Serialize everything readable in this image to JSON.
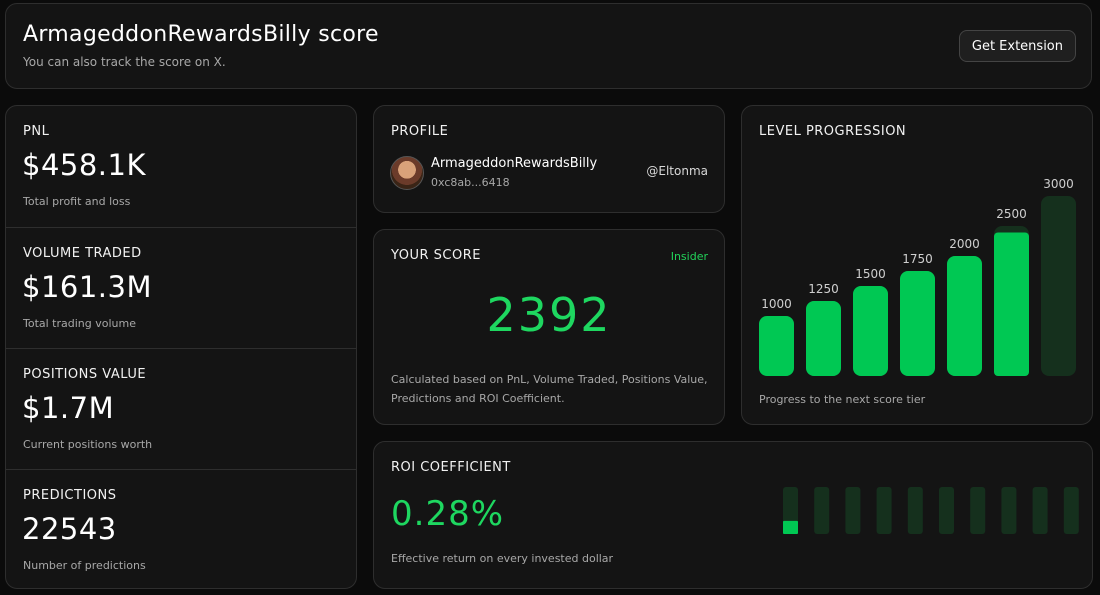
{
  "header": {
    "title": "ArmageddonRewardsBilly score",
    "subtitle": "You can also track the score on X.",
    "button_label": "Get Extension"
  },
  "stats": [
    {
      "label": "PNL",
      "value": "$458.1K",
      "desc": "Total profit and loss"
    },
    {
      "label": "VOLUME TRADED",
      "value": "$161.3M",
      "desc": "Total trading volume"
    },
    {
      "label": "POSITIONS VALUE",
      "value": "$1.7M",
      "desc": "Current positions worth"
    },
    {
      "label": "PREDICTIONS",
      "value": "22543",
      "desc": "Number of predictions"
    }
  ],
  "profile": {
    "label": "PROFILE",
    "name": "ArmageddonRewardsBilly",
    "address": "0xc8ab...6418",
    "handle": "@Eltonma"
  },
  "score": {
    "label": "YOUR SCORE",
    "tier": "Insider",
    "value": "2392",
    "description": "Calculated based on PnL, Volume Traded, Positions Value, Predictions and ROI Coefficient."
  },
  "levels": {
    "label": "LEVEL PROGRESSION",
    "footer": "Progress to the next score tier",
    "current_score": 2392,
    "tiers": [
      {
        "label": "1000",
        "value": 1000
      },
      {
        "label": "1250",
        "value": 1250
      },
      {
        "label": "1500",
        "value": 1500
      },
      {
        "label": "1750",
        "value": 1750
      },
      {
        "label": "2000",
        "value": 2000
      },
      {
        "label": "2500",
        "value": 2500
      },
      {
        "label": "3000",
        "value": 3000
      }
    ]
  },
  "roi": {
    "label": "ROI COEFFICIENT",
    "value": "0.28%",
    "description": "Effective return on every invested dollar",
    "segments": 10,
    "fill_fraction": 0.028
  },
  "colors": {
    "accent": "#1ed760",
    "bar_fill": "#00c853",
    "bar_track": "#15301d",
    "background": "#0b0b0b",
    "panel": "#141414"
  }
}
